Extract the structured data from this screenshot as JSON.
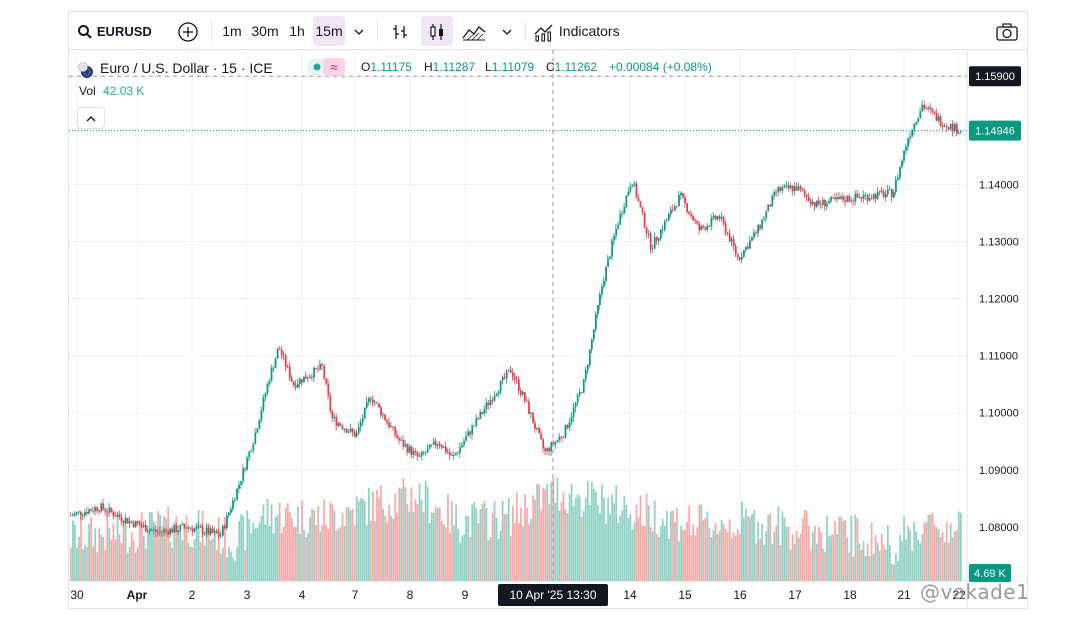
{
  "toolbar": {
    "symbol": "EURUSD",
    "intervals": [
      "1m",
      "30m",
      "1h",
      "15m"
    ],
    "active_interval": "15m",
    "indicators_label": "Indicators"
  },
  "legend": {
    "title": "Euro / U.S. Dollar · 15 · ICE",
    "open_key": "O",
    "open": "1.11175",
    "high_key": "H",
    "high": "1.11287",
    "low_key": "L",
    "low": "1.11079",
    "close_key": "C",
    "close": "1.11262",
    "change": "+0.00084 (+0.08%)",
    "vol_label": "Vol",
    "vol_value": "42.03 K"
  },
  "colors": {
    "up": "#089981",
    "down": "#f23645",
    "vol_up": "#8fd1c4",
    "vol_down": "#f7a9a7",
    "last_price": "#089981",
    "crosshair_label": "#131722"
  },
  "chart_data": {
    "type": "candlestick",
    "symbol": "EURUSD",
    "interval": "15",
    "y_ticks": [
      1.08,
      1.09,
      1.1,
      1.11,
      1.12,
      1.13,
      1.14
    ],
    "y_tick_labels": [
      "1.08000",
      "1.09000",
      "1.10000",
      "1.11000",
      "1.12000",
      "1.13000",
      "1.14000"
    ],
    "ylim": [
      1.0705,
      1.1636
    ],
    "crosshair_price": "1.15900",
    "last_price_value": 1.14946,
    "last_price_label": "1.14946",
    "last_volume_label": "4.69 K",
    "crosshair_time_label": "10 Apr '25   13:30",
    "x_tick_labels": [
      "30",
      "Apr",
      "2",
      "3",
      "4",
      "7",
      "8",
      "9",
      "14",
      "15",
      "16",
      "17",
      "18",
      "21",
      "22"
    ],
    "price_path": [
      [
        0.0,
        1.082
      ],
      [
        0.03,
        1.0835
      ],
      [
        0.06,
        1.081
      ],
      [
        0.09,
        1.079
      ],
      [
        0.12,
        1.08
      ],
      [
        0.155,
        1.0785
      ],
      [
        0.175,
        1.088
      ],
      [
        0.19,
        1.096
      ],
      [
        0.205,
        1.106
      ],
      [
        0.215,
        1.1115
      ],
      [
        0.23,
        1.105
      ],
      [
        0.26,
        1.108
      ],
      [
        0.27,
        1.099
      ],
      [
        0.295,
        1.096
      ],
      [
        0.31,
        1.103
      ],
      [
        0.34,
        1.095
      ],
      [
        0.36,
        1.092
      ],
      [
        0.38,
        1.095
      ],
      [
        0.395,
        1.092
      ],
      [
        0.41,
        1.096
      ],
      [
        0.44,
        1.104
      ],
      [
        0.455,
        1.1075
      ],
      [
        0.47,
        1.102
      ],
      [
        0.49,
        1.093
      ],
      [
        0.51,
        1.0965
      ],
      [
        0.53,
        1.105
      ],
      [
        0.55,
        1.123
      ],
      [
        0.565,
        1.133
      ],
      [
        0.58,
        1.141
      ],
      [
        0.6,
        1.129
      ],
      [
        0.63,
        1.138
      ],
      [
        0.65,
        1.132
      ],
      [
        0.67,
        1.1345
      ],
      [
        0.68,
        1.131
      ],
      [
        0.69,
        1.127
      ],
      [
        0.71,
        1.132
      ],
      [
        0.73,
        1.139
      ],
      [
        0.75,
        1.1395
      ],
      [
        0.77,
        1.1365
      ],
      [
        0.8,
        1.1375
      ],
      [
        0.85,
        1.1385
      ],
      [
        0.865,
        1.148
      ],
      [
        0.88,
        1.154
      ],
      [
        0.9,
        1.151
      ],
      [
        0.92,
        1.1494
      ]
    ],
    "volume_profile": [
      [
        0.0,
        0.3
      ],
      [
        0.05,
        0.35
      ],
      [
        0.12,
        0.45
      ],
      [
        0.17,
        0.25
      ],
      [
        0.2,
        0.6
      ],
      [
        0.26,
        0.55
      ],
      [
        0.32,
        0.75
      ],
      [
        0.36,
        0.85
      ],
      [
        0.4,
        0.5
      ],
      [
        0.45,
        0.55
      ],
      [
        0.5,
        0.9
      ],
      [
        0.55,
        0.75
      ],
      [
        0.6,
        0.6
      ],
      [
        0.65,
        0.45
      ],
      [
        0.7,
        0.5
      ],
      [
        0.75,
        0.4
      ],
      [
        0.8,
        0.35
      ],
      [
        0.85,
        0.2
      ],
      [
        0.88,
        0.45
      ],
      [
        0.92,
        0.4
      ]
    ]
  },
  "watermark": "@vakade1"
}
